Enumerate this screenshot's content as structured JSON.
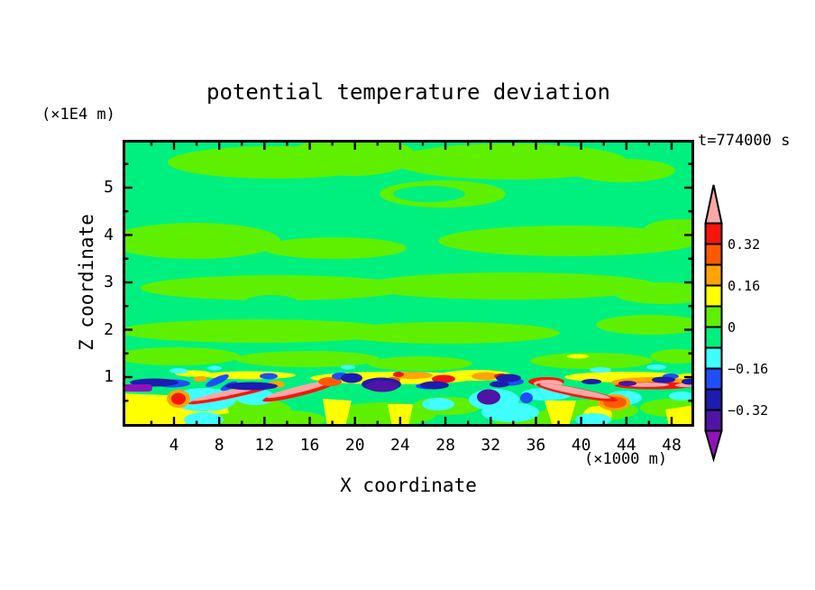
{
  "title": "potential temperature deviation",
  "timestamp_label": "t=774000 s",
  "x_axis": {
    "label": "X coordinate",
    "unit_label": "(×1000 m)",
    "major_ticks": [
      4,
      8,
      12,
      16,
      20,
      24,
      28,
      32,
      36,
      40,
      44,
      48
    ],
    "minor_ticks": [
      2,
      6,
      10,
      14,
      18,
      22,
      26,
      30,
      34,
      38,
      42,
      46
    ]
  },
  "z_axis": {
    "label": "Z coordinate",
    "unit_label": "(×1E4 m)",
    "major_ticks": [
      1,
      2,
      3,
      4,
      5
    ],
    "minor_ticks": [
      0.5,
      1.5,
      2.5,
      3.5,
      4.5,
      5.5
    ]
  },
  "palette": {
    "pink": "#F9A7A7",
    "red": "#F9150B",
    "orangered": "#FF5A00",
    "orange": "#FFA405",
    "yellow": "#FFFF00",
    "chartreuse": "#5FF000",
    "springgreen": "#00F07F",
    "cyan": "#3FFFFF",
    "blue": "#1E4FFA",
    "navy": "#1C1CB0",
    "indigo": "#4F14A5",
    "purple": "#9013B9"
  },
  "colorbar": {
    "bin_colors": [
      "red",
      "orangered",
      "orange",
      "yellow",
      "chartreuse",
      "springgreen",
      "cyan",
      "blue",
      "navy",
      "indigo"
    ],
    "arrow_top_color": "pink",
    "arrow_bottom_color": "purple",
    "labels": [
      "0.32",
      "0.16",
      "0",
      "−0.16",
      "−0.32"
    ],
    "label_boundaries": [
      1,
      3,
      5,
      7,
      9
    ]
  },
  "chart_data": {
    "type": "heatmap",
    "title": "potential temperature deviation",
    "xlabel": "X coordinate (×1000 m)",
    "ylabel": "Z coordinate (×1E4 m)",
    "time_annotation": "t=774000 s",
    "xlim": [
      0,
      50
    ],
    "ylim": [
      0,
      6
    ],
    "x_tick_labels": [
      4,
      8,
      12,
      16,
      20,
      24,
      28,
      32,
      36,
      40,
      44,
      48
    ],
    "y_tick_labels": [
      1,
      2,
      3,
      4,
      5
    ],
    "contour_interval": 0.08,
    "labeled_levels": [
      -0.32,
      -0.16,
      0,
      0.16,
      0.32
    ],
    "legend_bins_top_to_bottom": [
      {
        "color": "#F9A7A7",
        "range": [
          0.4,
          null
        ]
      },
      {
        "color": "#F9150B",
        "range": [
          0.32,
          0.4
        ]
      },
      {
        "color": "#FF5A00",
        "range": [
          0.24,
          0.32
        ]
      },
      {
        "color": "#FFA405",
        "range": [
          0.16,
          0.24
        ]
      },
      {
        "color": "#FFFF00",
        "range": [
          0.08,
          0.16
        ]
      },
      {
        "color": "#5FF000",
        "range": [
          0.0,
          0.08
        ]
      },
      {
        "color": "#00F07F",
        "range": [
          -0.08,
          0.0
        ]
      },
      {
        "color": "#3FFFFF",
        "range": [
          -0.16,
          -0.08
        ]
      },
      {
        "color": "#1E4FFA",
        "range": [
          -0.24,
          -0.16
        ]
      },
      {
        "color": "#1C1CB0",
        "range": [
          -0.32,
          -0.24
        ]
      },
      {
        "color": "#4F14A5",
        "range": [
          -0.4,
          -0.32
        ]
      },
      {
        "color": "#9013B9",
        "range": [
          null,
          -0.4
        ]
      }
    ],
    "description": "Vertical cross-section contour field: near-zero deviation aloft (alternating spring-green and chartreuse horizontal bands, z≈1.2–6), a thin turbulent inversion layer near z≈0.7–1.0 with strong ±0.3–0.4 anomalies (pink/red/orange plumes, navy/indigo/purple pockets, cyan troughs), and warm yellow patches with cyan pools below z≈0.7."
  },
  "field_shapes": [
    [
      "e",
      "chartreuse",
      170,
      25,
      120,
      18
    ],
    [
      "e",
      "chartreuse",
      255,
      18,
      70,
      22
    ],
    [
      "e",
      "chartreuse",
      430,
      24,
      130,
      20
    ],
    [
      "e",
      "chartreuse",
      355,
      60,
      70,
      15
    ],
    [
      "e",
      "chartreuse",
      555,
      34,
      58,
      13
    ],
    [
      "e",
      "springgreen",
      340,
      60,
      40,
      9
    ],
    [
      "e",
      "chartreuse",
      80,
      112,
      95,
      20
    ],
    [
      "e",
      "chartreuse",
      235,
      120,
      80,
      12
    ],
    [
      "e",
      "chartreuse",
      495,
      112,
      145,
      17
    ],
    [
      "e",
      "chartreuse",
      618,
      100,
      40,
      12
    ],
    [
      "e",
      "chartreuse",
      170,
      164,
      150,
      14
    ],
    [
      "e",
      "chartreuse",
      430,
      162,
      165,
      15
    ],
    [
      "e",
      "chartreuse",
      600,
      170,
      55,
      12
    ],
    [
      "e",
      "springgreen",
      165,
      180,
      30,
      8
    ],
    [
      "e",
      "chartreuse",
      150,
      212,
      155,
      13
    ],
    [
      "e",
      "chartreuse",
      360,
      214,
      125,
      12
    ],
    [
      "e",
      "chartreuse",
      585,
      205,
      60,
      11
    ],
    [
      "e",
      "chartreuse",
      60,
      240,
      70,
      10
    ],
    [
      "e",
      "chartreuse",
      205,
      243,
      80,
      9
    ],
    [
      "e",
      "chartreuse",
      330,
      248,
      58,
      8
    ],
    [
      "e",
      "chartreuse",
      520,
      245,
      68,
      9
    ],
    [
      "e",
      "chartreuse",
      615,
      240,
      30,
      8
    ],
    [
      "e",
      "chartreuse",
      125,
      300,
      62,
      16
    ],
    [
      "e",
      "chartreuse",
      180,
      310,
      45,
      10
    ],
    [
      "e",
      "chartreuse",
      290,
      304,
      58,
      13
    ],
    [
      "e",
      "chartreuse",
      360,
      295,
      38,
      10
    ],
    [
      "e",
      "chartreuse",
      450,
      310,
      40,
      10
    ],
    [
      "e",
      "chartreuse",
      520,
      300,
      52,
      12
    ],
    [
      "e",
      "chartreuse",
      608,
      297,
      34,
      10
    ],
    [
      "p",
      "yellow",
      "0,281 50,283 62,289 115,291 118,303 75,308 68,318 0,318"
    ],
    [
      "p",
      "yellow",
      "222,287 254,289 247,318 227,318"
    ],
    [
      "p",
      "yellow",
      "294,293 322,293 317,318 299,318"
    ],
    [
      "p",
      "yellow",
      "468,289 503,289 495,318 477,318"
    ],
    [
      "p",
      "yellow",
      "602,299 634,294 634,318 606,318"
    ],
    [
      "e",
      "yellow",
      527,
      305,
      16,
      10
    ],
    [
      "e",
      "yellow",
      300,
      264,
      92,
      7
    ],
    [
      "e",
      "yellow",
      392,
      261,
      40,
      6
    ],
    [
      "e",
      "yellow",
      558,
      263,
      68,
      6
    ],
    [
      "e",
      "yellow",
      140,
      261,
      52,
      4.5
    ],
    [
      "e",
      "yellow",
      78,
      259,
      20,
      3.5
    ],
    [
      "e",
      "yellow",
      505,
      240,
      12,
      2.5
    ],
    [
      "e",
      "yellow",
      628,
      264,
      16,
      5
    ],
    [
      "e",
      "cyan",
      90,
      288,
      36,
      13
    ],
    [
      "e",
      "cyan",
      147,
      285,
      22,
      9
    ],
    [
      "e",
      "cyan",
      90,
      310,
      22,
      8
    ],
    [
      "e",
      "cyan",
      412,
      288,
      28,
      12
    ],
    [
      "e",
      "cyan",
      430,
      302,
      32,
      11
    ],
    [
      "e",
      "cyan",
      556,
      286,
      20,
      8
    ],
    [
      "e",
      "cyan",
      350,
      293,
      18,
      7
    ],
    [
      "e",
      "cyan",
      62,
      256,
      10,
      3
    ],
    [
      "e",
      "cyan",
      102,
      253,
      8,
      2.5
    ],
    [
      "e",
      "cyan",
      592,
      252,
      11,
      3
    ],
    [
      "e",
      "cyan",
      250,
      252,
      8,
      2.5
    ],
    [
      "e",
      "cyan",
      530,
      255,
      12,
      3
    ],
    [
      "e",
      "cyan",
      522,
      310,
      20,
      7
    ],
    [
      "e",
      "cyan",
      470,
      282,
      28,
      7
    ],
    [
      "e",
      "cyan",
      620,
      284,
      14,
      5
    ],
    [
      "e",
      "orange",
      62,
      287,
      13,
      10
    ],
    [
      "e",
      "red",
      62,
      287,
      8,
      6.5
    ],
    [
      "e",
      "orange",
      86,
      265,
      8,
      3
    ],
    [
      "e",
      "orange",
      322,
      261,
      22,
      4
    ],
    [
      "e",
      "orange",
      402,
      262,
      15,
      4.5
    ],
    [
      "e",
      "orangered",
      300,
      266,
      8,
      3
    ],
    [
      "e",
      "red",
      122,
      282,
      50,
      4,
      -12
    ],
    [
      "e",
      "pink",
      122,
      279.5,
      46,
      3,
      -12
    ],
    [
      "e",
      "orange",
      170,
      271,
      10,
      4
    ],
    [
      "e",
      "red",
      196,
      279,
      42,
      5,
      -14
    ],
    [
      "e",
      "pink",
      196,
      276.5,
      37,
      3.5,
      -14
    ],
    [
      "e",
      "orangered",
      230,
      268,
      13,
      5
    ],
    [
      "e",
      "red",
      356,
      265,
      13,
      4.5
    ],
    [
      "e",
      "red",
      306,
      260,
      6,
      3
    ],
    [
      "e",
      "red",
      420,
      262,
      8,
      3
    ],
    [
      "e",
      "red",
      470,
      268,
      20,
      5
    ],
    [
      "e",
      "pink",
      472,
      270,
      16,
      4
    ],
    [
      "e",
      "orange",
      545,
      291,
      18,
      9
    ],
    [
      "e",
      "orangered",
      546,
      291,
      13,
      6.5
    ],
    [
      "e",
      "red",
      504,
      280,
      46,
      5,
      11
    ],
    [
      "e",
      "pink",
      502,
      278.5,
      40,
      3.5,
      11
    ],
    [
      "e",
      "orange",
      588,
      269,
      46,
      6
    ],
    [
      "e",
      "red",
      590,
      272.5,
      44,
      4
    ],
    [
      "e",
      "pink",
      582,
      271.5,
      24,
      2.5
    ],
    [
      "e",
      "pink",
      624,
      272,
      11,
      2.2
    ],
    [
      "e",
      "blue",
      55,
      270,
      20,
      4.5
    ],
    [
      "e",
      "blue",
      105,
      267,
      14,
      4,
      -25
    ],
    [
      "e",
      "blue",
      118,
      273,
      10,
      3.5,
      -25
    ],
    [
      "e",
      "blue",
      162,
      262,
      10,
      3.5
    ],
    [
      "e",
      "blue",
      242,
      262,
      10,
      4
    ],
    [
      "e",
      "blue",
      340,
      273,
      15,
      3.5
    ],
    [
      "e",
      "blue",
      430,
      268,
      15,
      4.5
    ],
    [
      "e",
      "blue",
      448,
      286,
      7,
      6
    ],
    [
      "e",
      "blue",
      608,
      262,
      9,
      3
    ],
    [
      "e",
      "navy",
      35,
      269,
      27,
      4.5
    ],
    [
      "e",
      "navy",
      143,
      273,
      29,
      4.5
    ],
    [
      "e",
      "navy",
      254,
      264,
      12,
      5.5
    ],
    [
      "e",
      "navy",
      346,
      272,
      16,
      4.5
    ],
    [
      "e",
      "navy",
      428,
      264,
      14,
      4.5
    ],
    [
      "e",
      "navy",
      418,
      271,
      11,
      3.5
    ],
    [
      "e",
      "navy",
      287,
      271,
      22,
      7.5
    ],
    [
      "e",
      "navy",
      600,
      266,
      13,
      3.5
    ],
    [
      "e",
      "navy",
      629,
      268,
      9,
      3.5
    ],
    [
      "e",
      "navy",
      520,
      268,
      11,
      3
    ],
    [
      "e",
      "indigo",
      288,
      273,
      18,
      6.5
    ],
    [
      "e",
      "indigo",
      406,
      285,
      13,
      8.5
    ],
    [
      "e",
      "indigo",
      560,
      270,
      10,
      3
    ],
    [
      "r",
      "purple",
      0,
      271,
      33,
      8,
      4
    ]
  ]
}
